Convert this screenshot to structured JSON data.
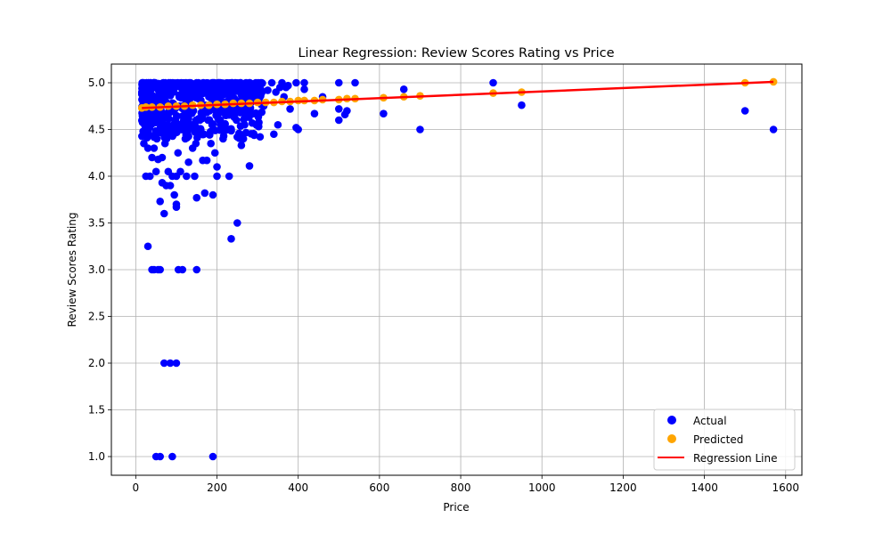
{
  "colors": {
    "actual": "#0000ff",
    "predicted": "#ffa500",
    "regression": "#ff0000",
    "grid": "#b0b0b0"
  },
  "chart_data": {
    "type": "scatter",
    "title": "Linear Regression: Review Scores Rating vs Price",
    "xlabel": "Price",
    "ylabel": "Review Scores Rating",
    "xlim": [
      -60,
      1640
    ],
    "ylim": [
      0.8,
      5.2
    ],
    "xticks": [
      0,
      200,
      400,
      600,
      800,
      1000,
      1200,
      1400,
      1600
    ],
    "xtick_labels": [
      "0",
      "200",
      "400",
      "600",
      "800",
      "1000",
      "1200",
      "1400",
      "1600"
    ],
    "yticks": [
      1.0,
      1.5,
      2.0,
      2.5,
      3.0,
      3.5,
      4.0,
      4.5,
      5.0
    ],
    "ytick_labels": [
      "1.0",
      "1.5",
      "2.0",
      "2.5",
      "3.0",
      "3.5",
      "4.0",
      "4.5",
      "5.0"
    ],
    "grid": true,
    "legend_position": "bottom-right",
    "series": [
      {
        "name": "Actual",
        "kind": "scatter",
        "color": "#0000ff",
        "points": [
          [
            1570,
            4.5
          ],
          [
            1500,
            4.7
          ],
          [
            950,
            4.76
          ],
          [
            880,
            5.0
          ],
          [
            700,
            4.5
          ],
          [
            660,
            4.93
          ],
          [
            610,
            4.67
          ],
          [
            540,
            5.0
          ],
          [
            520,
            4.7
          ],
          [
            515,
            4.66
          ],
          [
            500,
            4.72
          ],
          [
            500,
            4.6
          ],
          [
            500,
            5.0
          ],
          [
            460,
            4.85
          ],
          [
            440,
            4.67
          ],
          [
            415,
            5.0
          ],
          [
            415,
            4.93
          ],
          [
            400,
            4.5
          ],
          [
            395,
            4.52
          ],
          [
            395,
            5.0
          ],
          [
            380,
            4.72
          ],
          [
            370,
            4.95
          ],
          [
            360,
            5.0
          ],
          [
            350,
            4.55
          ],
          [
            340,
            4.45
          ],
          [
            335,
            5.0
          ],
          [
            310,
            4.9
          ],
          [
            300,
            4.55
          ],
          [
            290,
            4.92
          ],
          [
            280,
            5.0
          ],
          [
            280,
            4.11
          ],
          [
            270,
            4.65
          ],
          [
            265,
            4.4
          ],
          [
            260,
            4.33
          ],
          [
            250,
            4.95
          ],
          [
            250,
            3.5
          ],
          [
            245,
            5.0
          ],
          [
            235,
            3.33
          ],
          [
            230,
            4.0
          ],
          [
            225,
            4.8
          ],
          [
            215,
            4.4
          ],
          [
            210,
            4.7
          ],
          [
            205,
            5.0
          ],
          [
            200,
            4.1
          ],
          [
            200,
            4.0
          ],
          [
            195,
            4.25
          ],
          [
            190,
            3.8
          ],
          [
            190,
            1.0
          ],
          [
            185,
            4.35
          ],
          [
            180,
            4.85
          ],
          [
            175,
            4.17
          ],
          [
            170,
            3.82
          ],
          [
            165,
            4.17
          ],
          [
            160,
            4.5
          ],
          [
            150,
            3.77
          ],
          [
            150,
            3.0
          ],
          [
            145,
            4.0
          ],
          [
            140,
            4.3
          ],
          [
            130,
            4.15
          ],
          [
            125,
            4.0
          ],
          [
            115,
            3.0
          ],
          [
            110,
            4.05
          ],
          [
            105,
            3.0
          ],
          [
            100,
            3.7
          ],
          [
            100,
            3.67
          ],
          [
            100,
            4.0
          ],
          [
            100,
            2.0
          ],
          [
            95,
            3.8
          ],
          [
            90,
            4.0
          ],
          [
            90,
            1.0
          ],
          [
            85,
            3.9
          ],
          [
            85,
            2.0
          ],
          [
            80,
            4.05
          ],
          [
            75,
            3.9
          ],
          [
            70,
            3.6
          ],
          [
            70,
            2.0
          ],
          [
            65,
            4.2
          ],
          [
            65,
            3.93
          ],
          [
            60,
            3.73
          ],
          [
            60,
            3.0
          ],
          [
            60,
            1.0
          ],
          [
            55,
            4.18
          ],
          [
            55,
            3.0
          ],
          [
            50,
            4.05
          ],
          [
            50,
            1.0
          ],
          [
            45,
            3.0
          ],
          [
            40,
            4.2
          ],
          [
            40,
            3.0
          ],
          [
            35,
            4.0
          ],
          [
            30,
            3.25
          ],
          [
            30,
            4.3
          ],
          [
            25,
            4.0
          ],
          [
            20,
            4.35
          ],
          [
            18,
            4.6
          ],
          [
            22,
            4.9
          ],
          [
            28,
            4.55
          ],
          [
            32,
            4.45
          ],
          [
            35,
            4.75
          ],
          [
            40,
            4.65
          ],
          [
            45,
            4.3
          ],
          [
            48,
            4.85
          ],
          [
            52,
            4.4
          ],
          [
            58,
            4.6
          ],
          [
            62,
            4.5
          ],
          [
            68,
            4.8
          ],
          [
            72,
            4.35
          ],
          [
            78,
            4.55
          ],
          [
            82,
            4.7
          ],
          [
            88,
            4.45
          ],
          [
            92,
            4.9
          ],
          [
            98,
            4.6
          ],
          [
            104,
            4.25
          ],
          [
            108,
            4.75
          ],
          [
            112,
            4.5
          ],
          [
            118,
            4.85
          ],
          [
            122,
            4.4
          ],
          [
            128,
            4.65
          ],
          [
            132,
            4.95
          ],
          [
            138,
            4.55
          ],
          [
            142,
            4.7
          ],
          [
            148,
            4.35
          ],
          [
            152,
            4.85
          ],
          [
            158,
            4.6
          ],
          [
            162,
            4.75
          ],
          [
            168,
            4.45
          ],
          [
            172,
            4.9
          ],
          [
            178,
            4.6
          ],
          [
            182,
            4.7
          ],
          [
            188,
            4.55
          ],
          [
            192,
            4.85
          ],
          [
            198,
            4.65
          ],
          [
            202,
            4.92
          ],
          [
            208,
            4.6
          ],
          [
            212,
            4.8
          ],
          [
            218,
            4.68
          ],
          [
            222,
            4.9
          ],
          [
            228,
            4.5
          ],
          [
            232,
            4.85
          ],
          [
            238,
            4.72
          ],
          [
            242,
            4.95
          ],
          [
            248,
            4.6
          ],
          [
            252,
            4.8
          ],
          [
            258,
            4.7
          ],
          [
            262,
            4.9
          ],
          [
            268,
            4.55
          ],
          [
            272,
            4.95
          ],
          [
            278,
            4.8
          ],
          [
            285,
            4.92
          ],
          [
            295,
            4.88
          ],
          [
            305,
            4.95
          ],
          [
            315,
            4.75
          ],
          [
            325,
            4.92
          ],
          [
            345,
            4.9
          ],
          [
            355,
            4.95
          ],
          [
            365,
            4.85
          ],
          [
            375,
            4.97
          ]
        ]
      },
      {
        "name": "Predicted",
        "kind": "scatter",
        "color": "#ffa500",
        "points": [
          [
            15,
            4.73
          ],
          [
            25,
            4.74
          ],
          [
            40,
            4.74
          ],
          [
            60,
            4.74
          ],
          [
            80,
            4.75
          ],
          [
            100,
            4.75
          ],
          [
            120,
            4.75
          ],
          [
            140,
            4.76
          ],
          [
            160,
            4.76
          ],
          [
            180,
            4.76
          ],
          [
            200,
            4.77
          ],
          [
            220,
            4.77
          ],
          [
            240,
            4.78
          ],
          [
            260,
            4.78
          ],
          [
            280,
            4.78
          ],
          [
            300,
            4.79
          ],
          [
            320,
            4.79
          ],
          [
            340,
            4.79
          ],
          [
            360,
            4.8
          ],
          [
            380,
            4.8
          ],
          [
            400,
            4.81
          ],
          [
            415,
            4.81
          ],
          [
            440,
            4.81
          ],
          [
            460,
            4.82
          ],
          [
            500,
            4.82
          ],
          [
            520,
            4.83
          ],
          [
            540,
            4.83
          ],
          [
            610,
            4.84
          ],
          [
            660,
            4.85
          ],
          [
            700,
            4.86
          ],
          [
            880,
            4.89
          ],
          [
            950,
            4.9
          ],
          [
            1500,
            5.0
          ],
          [
            1570,
            5.01
          ]
        ]
      },
      {
        "name": "Regression Line",
        "kind": "line",
        "color": "#ff0000",
        "points": [
          [
            15,
            4.73
          ],
          [
            1570,
            5.01
          ]
        ]
      }
    ]
  }
}
